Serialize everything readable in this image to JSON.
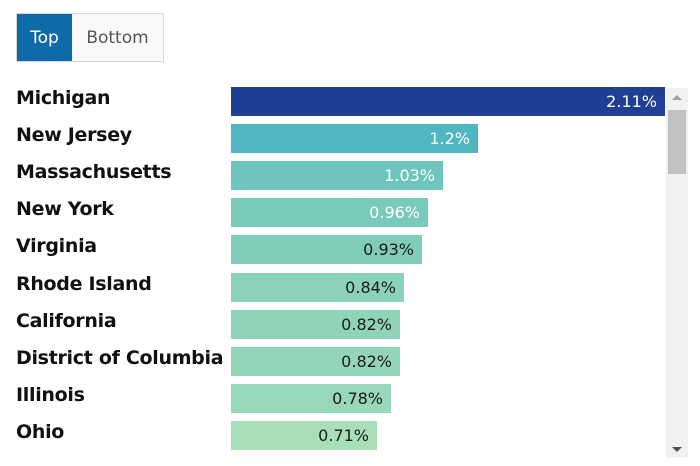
{
  "toggle": {
    "top_label": "Top",
    "bottom_label": "Bottom",
    "selected": "Top"
  },
  "chart_data": {
    "type": "bar",
    "orientation": "horizontal",
    "title": "",
    "xlabel": "",
    "ylabel": "",
    "xlim": [
      0,
      2.11
    ],
    "grid": false,
    "legend": "none",
    "categories": [
      "Michigan",
      "New Jersey",
      "Massachusetts",
      "New York",
      "Virginia",
      "Rhode Island",
      "California",
      "District of Columbia",
      "Illinois",
      "Ohio"
    ],
    "values": [
      2.11,
      1.2,
      1.03,
      0.96,
      0.93,
      0.84,
      0.82,
      0.82,
      0.78,
      0.71
    ],
    "value_labels": [
      "2.11%",
      "1.2%",
      "1.03%",
      "0.96%",
      "0.93%",
      "0.84%",
      "0.82%",
      "0.82%",
      "0.78%",
      "0.71%"
    ],
    "bar_colors": [
      "#1f3f94",
      "#4fb6c2",
      "#6ec5be",
      "#78cabb",
      "#7fcdb9",
      "#8bd2b8",
      "#8fd4b8",
      "#92d5b8",
      "#98d8b8",
      "#a9dfb8"
    ],
    "label_colors": [
      "#ffffff",
      "#ffffff",
      "#ffffff",
      "#ffffff",
      "#1a1a1a",
      "#1a1a1a",
      "#1a1a1a",
      "#1a1a1a",
      "#1a1a1a",
      "#1a1a1a"
    ]
  },
  "scrollbar": {
    "up_icon": "triangle-up",
    "down_icon": "triangle-down"
  }
}
